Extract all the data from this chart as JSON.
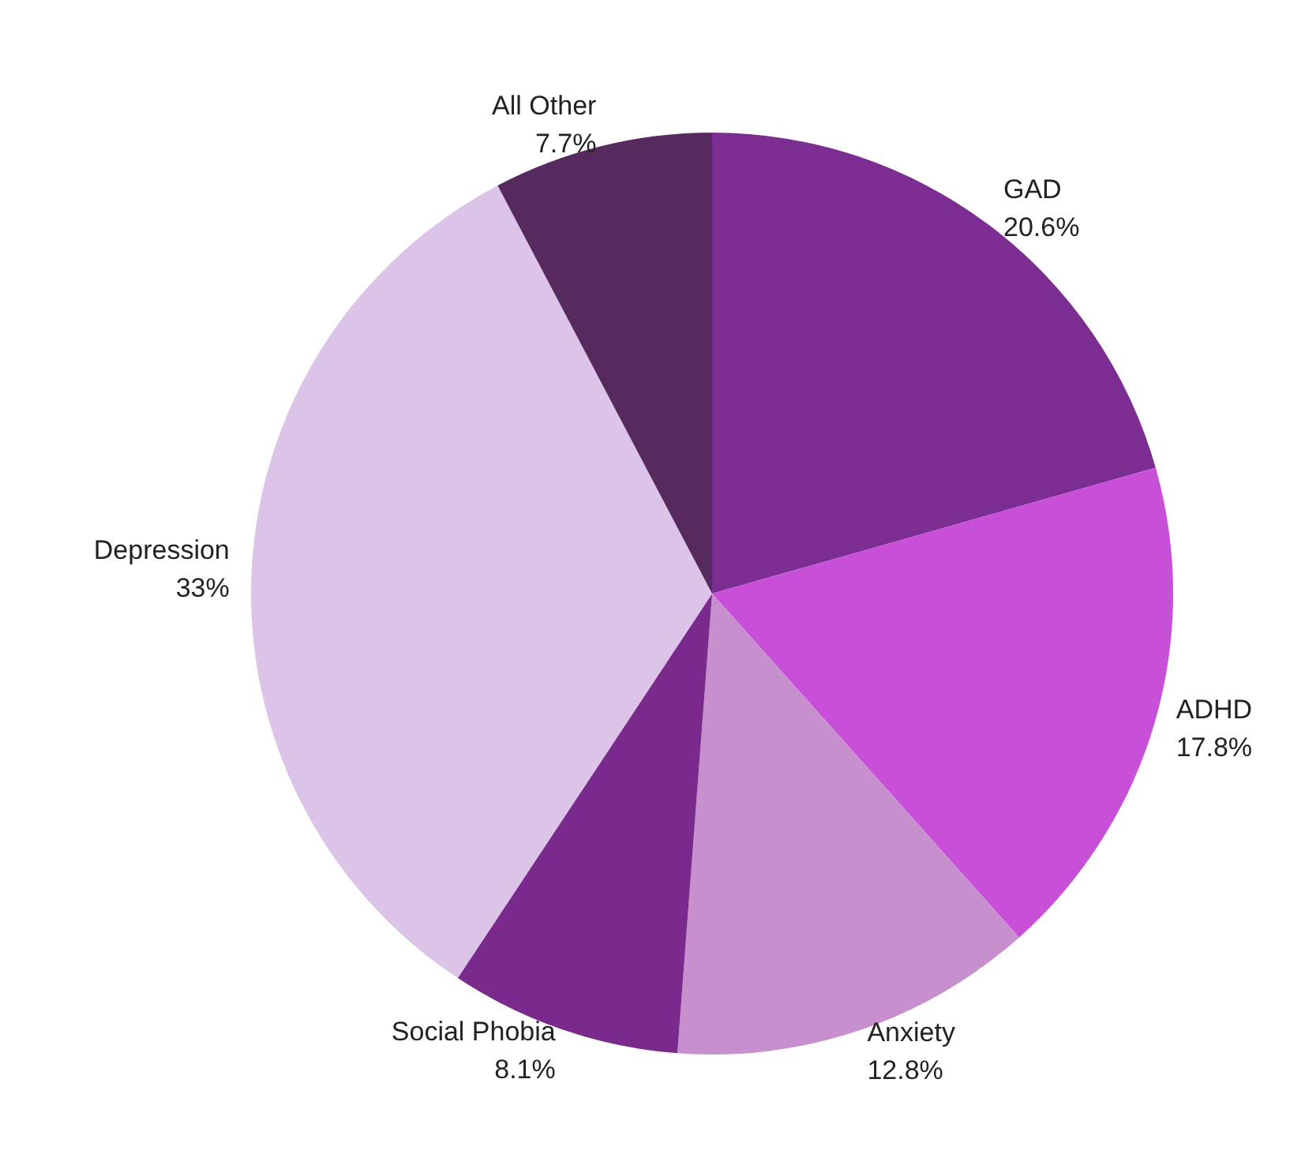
{
  "chart_data": {
    "type": "pie",
    "categories": [
      "GAD",
      "ADHD",
      "Anxiety",
      "Social Phobia",
      "Depression",
      "All Other"
    ],
    "values": [
      20.6,
      17.8,
      12.8,
      8.1,
      33,
      7.7
    ],
    "value_labels": [
      "20.6%",
      "17.8%",
      "12.8%",
      "8.1%",
      "33%",
      "7.7%"
    ],
    "colors": [
      "#7b2d91",
      "#c84fd8",
      "#c88fcf",
      "#7a2a8c",
      "#dcc4e8",
      "#56295f"
    ],
    "legend": false
  }
}
